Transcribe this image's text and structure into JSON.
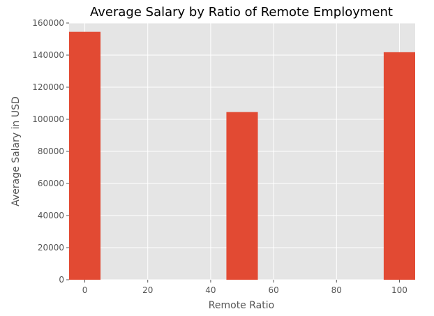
{
  "chart_data": {
    "type": "bar",
    "title": "Average Salary by Ratio of Remote Employment",
    "xlabel": "Remote Ratio",
    "ylabel": "Average Salary in USD",
    "x": [
      0,
      50,
      100
    ],
    "values": [
      154500,
      104500,
      141800
    ],
    "bar_width": 10,
    "xlim": [
      -5,
      105
    ],
    "ylim": [
      0,
      160000
    ],
    "xticks": [
      0,
      20,
      40,
      60,
      80,
      100
    ],
    "yticks": [
      0,
      20000,
      40000,
      60000,
      80000,
      100000,
      120000,
      140000,
      160000
    ],
    "grid": true,
    "legend": "none"
  },
  "colors": {
    "bar": "#E24A33",
    "plot_background": "#E5E5E5",
    "grid": "#FFFFFF",
    "text": "#555555"
  }
}
